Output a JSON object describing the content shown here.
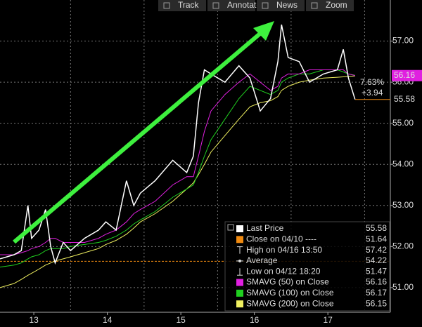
{
  "chart_data": {
    "type": "line",
    "toolbar": [
      "Track",
      "Annotate",
      "News",
      "Zoom"
    ],
    "x": [
      12.54,
      12.73,
      12.83,
      12.92,
      12.97,
      13.07,
      13.16,
      13.23,
      13.29,
      13.4,
      13.5,
      13.69,
      13.88,
      13.98,
      14.12,
      14.26,
      14.36,
      14.45,
      14.65,
      14.89,
      15.08,
      15.17,
      15.24,
      15.32,
      15.41,
      15.6,
      15.79,
      15.94,
      16.08,
      16.22,
      16.32,
      16.37,
      16.46,
      16.61,
      16.75,
      16.94,
      17.13,
      17.21,
      17.28,
      17.37
    ],
    "series": [
      {
        "name": "Last Price",
        "color": "#ffffff",
        "last": 55.58,
        "values": [
          51.7,
          51.8,
          51.9,
          53.0,
          52.2,
          52.4,
          52.9,
          52.0,
          51.6,
          52.1,
          51.9,
          52.2,
          52.4,
          52.6,
          52.4,
          53.6,
          53.0,
          53.3,
          53.6,
          54.1,
          53.8,
          54.2,
          55.5,
          56.3,
          56.2,
          56.0,
          56.4,
          56.1,
          55.3,
          55.6,
          56.5,
          57.4,
          56.6,
          56.5,
          56.0,
          56.2,
          56.3,
          56.8,
          56.1,
          55.58
        ]
      },
      {
        "name": "SMAVG (50) on Close",
        "color": "#e020e0",
        "last": 56.16,
        "values": [
          51.8,
          51.8,
          51.85,
          51.9,
          51.95,
          52.0,
          52.1,
          52.2,
          52.2,
          52.1,
          52.1,
          52.1,
          52.2,
          52.3,
          52.4,
          52.6,
          52.8,
          52.9,
          53.1,
          53.5,
          53.7,
          53.7,
          54.2,
          54.8,
          55.3,
          55.7,
          56.0,
          56.2,
          56.0,
          55.8,
          55.9,
          56.1,
          56.2,
          56.2,
          56.3,
          56.3,
          56.3,
          56.3,
          56.2,
          56.16
        ]
      },
      {
        "name": "SMAVG (100) on Close",
        "color": "#20d020",
        "last": 56.17,
        "values": [
          51.5,
          51.55,
          51.6,
          51.7,
          51.75,
          51.8,
          51.9,
          51.95,
          51.95,
          51.95,
          52.0,
          52.05,
          52.1,
          52.15,
          52.25,
          52.4,
          52.55,
          52.65,
          52.85,
          53.2,
          53.4,
          53.5,
          53.8,
          54.2,
          54.6,
          55.1,
          55.6,
          55.9,
          55.8,
          55.7,
          55.8,
          56.0,
          56.1,
          56.2,
          56.2,
          56.3,
          56.3,
          56.25,
          56.2,
          56.17
        ]
      },
      {
        "name": "SMAVG (200) on Close",
        "color": "#f0f060",
        "last": 56.15,
        "values": [
          51.0,
          51.1,
          51.2,
          51.3,
          51.35,
          51.45,
          51.55,
          51.6,
          51.65,
          51.7,
          51.75,
          51.85,
          51.95,
          52.05,
          52.15,
          52.3,
          52.45,
          52.6,
          52.8,
          53.1,
          53.4,
          53.55,
          53.75,
          54.0,
          54.3,
          54.7,
          55.1,
          55.4,
          55.5,
          55.55,
          55.65,
          55.8,
          55.9,
          56.0,
          56.05,
          56.1,
          56.12,
          56.13,
          56.14,
          56.15
        ]
      }
    ],
    "stats": [
      {
        "name": "Close on 04/10 ----",
        "value": 51.64,
        "color": "#f08a10"
      },
      {
        "name": "High on 04/16 13:50",
        "value": 57.42
      },
      {
        "name": "Average",
        "value": 54.22
      },
      {
        "name": "Low on 04/12 18:20",
        "value": 51.47
      }
    ],
    "change_pct": "7.63%",
    "change": "+3.94",
    "xlim": [
      12.54,
      17.85
    ],
    "xticks": [
      13,
      14,
      15,
      16,
      17
    ],
    "ylim": [
      50.4,
      58.0
    ],
    "yticks": [
      {
        "value": 51,
        "label": "51.00"
      },
      {
        "value": 52,
        "label": "52.00"
      },
      {
        "value": 53,
        "label": "53.00"
      },
      {
        "value": 54,
        "label": "54.00"
      },
      {
        "value": 55,
        "label": "55.00"
      },
      {
        "value": 56,
        "label": "56.00"
      },
      {
        "value": 57,
        "label": "57.00"
      }
    ],
    "grid": true
  }
}
